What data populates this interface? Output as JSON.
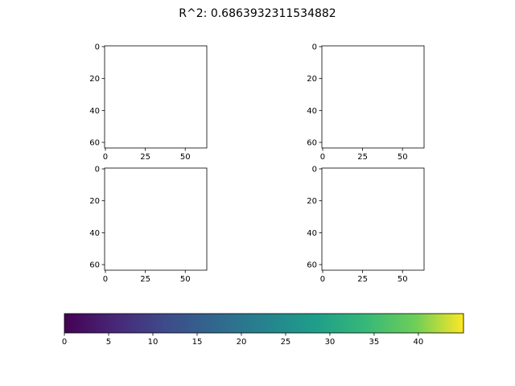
{
  "title": "R^2: 0.6863932311534882",
  "chart_data": [
    {
      "type": "image",
      "xlim": [
        -0.5,
        63.5
      ],
      "ylim": [
        63.5,
        -0.5
      ],
      "xticks": [
        0,
        25,
        50
      ],
      "yticks": [
        0,
        20,
        40,
        60
      ]
    },
    {
      "type": "image",
      "xlim": [
        -0.5,
        63.5
      ],
      "ylim": [
        63.5,
        -0.5
      ],
      "xticks": [
        0,
        25,
        50
      ],
      "yticks": [
        0,
        20,
        40,
        60
      ]
    },
    {
      "type": "image",
      "xlim": [
        -0.5,
        63.5
      ],
      "ylim": [
        63.5,
        -0.5
      ],
      "xticks": [
        0,
        25,
        50
      ],
      "yticks": [
        0,
        20,
        40,
        60
      ]
    },
    {
      "type": "image",
      "xlim": [
        -0.5,
        63.5
      ],
      "ylim": [
        63.5,
        -0.5
      ],
      "xticks": [
        0,
        25,
        50
      ],
      "yticks": [
        0,
        20,
        40,
        60
      ]
    },
    {
      "type": "colorbar",
      "colormap": "viridis",
      "xlim": [
        0,
        45.1
      ],
      "xticks": [
        0,
        5,
        10,
        15,
        20,
        25,
        30,
        35,
        40
      ]
    }
  ]
}
